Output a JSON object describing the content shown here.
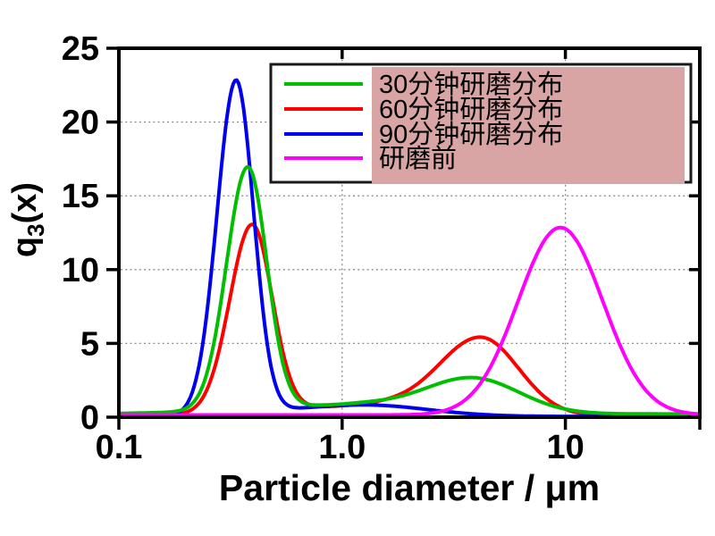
{
  "chart_data": {
    "type": "line",
    "title": "",
    "xlabel": "Particle diameter / μm",
    "ylabel": "q3(x)",
    "ylabel_parts": {
      "base": "q",
      "sub": "3",
      "rest": "(x)"
    },
    "x_scale": "log",
    "xlim": [
      0.1,
      40
    ],
    "ylim": [
      0,
      25
    ],
    "x_ticks": [
      {
        "value": 0.1,
        "label": "0.1"
      },
      {
        "value": 1.0,
        "label": "1.0"
      },
      {
        "value": 10,
        "label": "10"
      },
      {
        "value": 40,
        "label": ""
      }
    ],
    "y_ticks": [
      {
        "value": 0,
        "label": "0"
      },
      {
        "value": 5,
        "label": "5"
      },
      {
        "value": 10,
        "label": "10"
      },
      {
        "value": 15,
        "label": "15"
      },
      {
        "value": 20,
        "label": "20"
      },
      {
        "value": 25,
        "label": "25"
      }
    ],
    "grid": {
      "horizontal_at": [
        5,
        10,
        15,
        20
      ],
      "vertical_at": [
        1.0,
        10
      ],
      "style": "dotted",
      "color": "#8c8c8c"
    },
    "legend": {
      "position": "top-right",
      "border_color": "#1a1a1a",
      "bg": "#ffffff",
      "highlight_bg": "#d9a4a4"
    },
    "draw_order": [
      1,
      2,
      0,
      3
    ],
    "series": [
      {
        "name": "30分钟研磨分布",
        "color": "#00bf00",
        "floor": 0.22,
        "peaks": [
          {
            "x": 0.38,
            "y": 16.5
          },
          {
            "x": 3.8,
            "y": 2.7
          }
        ],
        "components": [
          {
            "amp": 16.4,
            "center_um": 0.378,
            "sigma_left": 0.095,
            "sigma_right": 0.085
          },
          {
            "amp": 0.6,
            "center_um": 1.12,
            "sigma_left": 0.45,
            "sigma_right": 0.2
          },
          {
            "amp": 2.45,
            "center_um": 3.8,
            "sigma_left": 0.22,
            "sigma_right": 0.21
          }
        ],
        "points": {
          "x": [
            0.15,
            0.2,
            0.25,
            0.3,
            0.35,
            0.4,
            0.45,
            0.5,
            0.6,
            0.8,
            1.0,
            1.5,
            2.0,
            2.5,
            3.0,
            4.0,
            5.0,
            7.0,
            10,
            15,
            20,
            30,
            40
          ],
          "y": [
            0.3,
            0.6,
            3.1,
            9.6,
            15.6,
            15.9,
            11.0,
            6.4,
            1.7,
            0.8,
            0.9,
            1.2,
            1.7,
            2.1,
            2.6,
            2.8,
            2.3,
            1.3,
            0.6,
            0.3,
            0.2,
            0.2,
            0.2
          ]
        }
      },
      {
        "name": "60分钟研磨分布",
        "color": "#ff0000",
        "floor": 0.1,
        "peaks": [
          {
            "x": 0.4,
            "y": 12.8
          },
          {
            "x": 4.2,
            "y": 5.5
          }
        ],
        "components": [
          {
            "amp": 12.7,
            "center_um": 0.395,
            "sigma_left": 0.1,
            "sigma_right": 0.09
          },
          {
            "amp": 0.7,
            "center_um": 1.41,
            "sigma_left": 0.4,
            "sigma_right": 0.18
          },
          {
            "amp": 5.3,
            "center_um": 4.17,
            "sigma_left": 0.19,
            "sigma_right": 0.17
          }
        ],
        "points": {
          "x": [
            0.15,
            0.2,
            0.25,
            0.3,
            0.35,
            0.4,
            0.45,
            0.5,
            0.6,
            0.8,
            1.0,
            1.5,
            2.0,
            2.5,
            3.0,
            4.0,
            5.0,
            7.0,
            10,
            15,
            20,
            30,
            40
          ],
          "y": [
            0.15,
            0.35,
            1.95,
            6.4,
            11.3,
            12.8,
            10.5,
            7.0,
            2.1,
            0.7,
            0.7,
            1.1,
            1.8,
            3.0,
            4.3,
            5.5,
            4.9,
            2.3,
            0.5,
            0.15,
            0.1,
            0.1,
            0.1
          ]
        }
      },
      {
        "name": "90分钟研磨分布",
        "color": "#0000ee",
        "floor": 0.05,
        "peaks": [
          {
            "x": 0.335,
            "y": 22.7
          }
        ],
        "components": [
          {
            "amp": 22.6,
            "center_um": 0.335,
            "sigma_left": 0.085,
            "sigma_right": 0.078
          },
          {
            "amp": 0.78,
            "center_um": 1.26,
            "sigma_left": 0.35,
            "sigma_right": 0.28
          }
        ],
        "points": {
          "x": [
            0.15,
            0.2,
            0.25,
            0.3,
            0.35,
            0.4,
            0.45,
            0.5,
            0.6,
            0.8,
            1.0,
            1.5,
            2.0,
            2.5,
            3.0,
            4.0,
            5.0,
            7.0,
            10,
            15,
            20,
            30,
            40
          ],
          "y": [
            0.1,
            0.75,
            7.5,
            19.3,
            22.6,
            13.9,
            6.0,
            2.2,
            0.7,
            0.75,
            0.8,
            0.8,
            0.65,
            0.5,
            0.4,
            0.2,
            0.12,
            0.07,
            0.05,
            0.05,
            0.05,
            0.05,
            0.05
          ]
        }
      },
      {
        "name": "研磨前",
        "color": "#ff00ff",
        "floor": 0.15,
        "peaks": [
          {
            "x": 9.5,
            "y": 12.8
          }
        ],
        "components": [
          {
            "amp": 12.7,
            "center_um": 9.5,
            "sigma_left": 0.19,
            "sigma_right": 0.19
          }
        ],
        "points": {
          "x": [
            0.15,
            0.2,
            0.25,
            0.3,
            0.35,
            0.4,
            0.45,
            0.5,
            0.6,
            0.8,
            1.0,
            1.5,
            2.0,
            2.5,
            3.0,
            4.0,
            5.0,
            7.0,
            10,
            15,
            20,
            30,
            40
          ],
          "y": [
            0.15,
            0.15,
            0.15,
            0.15,
            0.15,
            0.15,
            0.15,
            0.15,
            0.15,
            0.15,
            0.15,
            0.15,
            0.15,
            0.25,
            0.5,
            1.9,
            4.5,
            10.1,
            12.9,
            7.5,
            3.1,
            0.5,
            0.15
          ]
        }
      }
    ]
  }
}
